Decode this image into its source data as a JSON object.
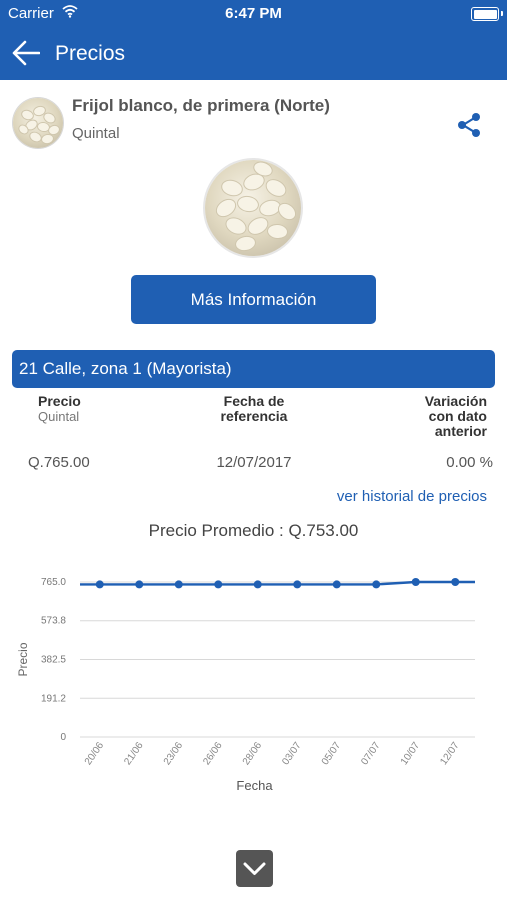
{
  "status_bar": {
    "carrier": "Carrier",
    "time": "6:47 PM"
  },
  "nav": {
    "title": "Precios"
  },
  "product": {
    "name": "Frijol blanco, de primera (Norte)",
    "unit": "Quintal"
  },
  "more_info_label": "Más Información",
  "market": {
    "name": "21 Calle, zona 1 (Mayorista)"
  },
  "table": {
    "price_header": "Precio",
    "price_sub": "Quintal",
    "date_header_1": "Fecha de",
    "date_header_2": "referencia",
    "variation_header_1": "Variación",
    "variation_header_2": "con dato",
    "variation_header_3": "anterior",
    "price_value": "Q.765.00",
    "date_value": "12/07/2017",
    "variation_value": "0.00 %"
  },
  "history_link": "ver historial de precios",
  "average_label": "Precio Promedio : Q.753.00",
  "chart_data": {
    "type": "line",
    "xlabel": "Fecha",
    "ylabel": "Precio",
    "categories": [
      "20/06",
      "21/06",
      "23/06",
      "26/06",
      "28/06",
      "03/07",
      "05/07",
      "07/07",
      "10/07",
      "12/07"
    ],
    "series": [
      {
        "values": [
          753,
          753,
          753,
          753,
          753,
          753,
          753,
          753,
          765,
          765
        ]
      }
    ],
    "yticks": [
      "765.0",
      "573.8",
      "382.5",
      "191.2",
      "0"
    ],
    "ylim": [
      0,
      765
    ],
    "grid": true,
    "line_color": "#1f5fb3"
  },
  "colors": {
    "accent": "#1f5fb3"
  }
}
